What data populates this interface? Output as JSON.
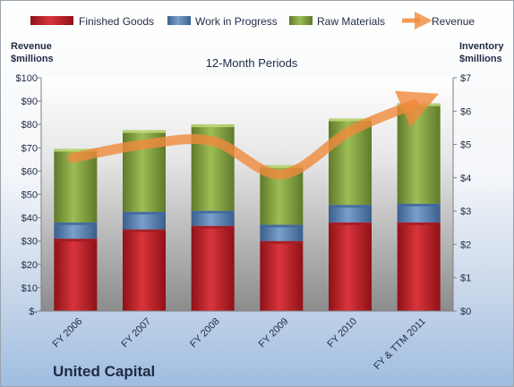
{
  "chart_data": {
    "type": "bar",
    "title": "12-Month Periods",
    "company": "United Capital",
    "categories": [
      "FY 2006",
      "FY 2007",
      "FY 2008",
      "FY 2009",
      "FY 2010",
      "FY & TTM 2011"
    ],
    "left_axis": {
      "label": "Revenue $millions",
      "label_lines": [
        "Revenue",
        "$millions"
      ],
      "ylim": [
        0,
        100
      ],
      "ticks": [
        "$-",
        "$10",
        "$20",
        "$30",
        "$40",
        "$50",
        "$60",
        "$70",
        "$80",
        "$90",
        "$100"
      ]
    },
    "right_axis": {
      "label": "Inventory $millions",
      "label_lines": [
        "Inventory",
        "$millions"
      ],
      "ylim": [
        0,
        7
      ],
      "ticks": [
        "$0",
        "$1",
        "$2",
        "$3",
        "$4",
        "$5",
        "$6",
        "$7"
      ]
    },
    "series": [
      {
        "name": "Finished Goods",
        "type": "stacked-bar",
        "color": "#c0272d",
        "values": [
          31,
          35,
          36.5,
          30,
          38,
          38
        ]
      },
      {
        "name": "Work in Progress",
        "type": "stacked-bar",
        "color": "#4f81bd",
        "values": [
          7,
          7.5,
          6.5,
          7,
          7.5,
          8
        ]
      },
      {
        "name": "Raw Materials",
        "type": "stacked-bar",
        "color": "#8aab45",
        "values": [
          31.5,
          35,
          37,
          25.5,
          37,
          43
        ]
      },
      {
        "name": "Revenue",
        "type": "line",
        "color": "#f08a3c",
        "axis": "right",
        "values": [
          4.6,
          5.0,
          5.1,
          4.1,
          5.4,
          6.2
        ]
      }
    ],
    "legend_position": "top",
    "grid": false
  }
}
